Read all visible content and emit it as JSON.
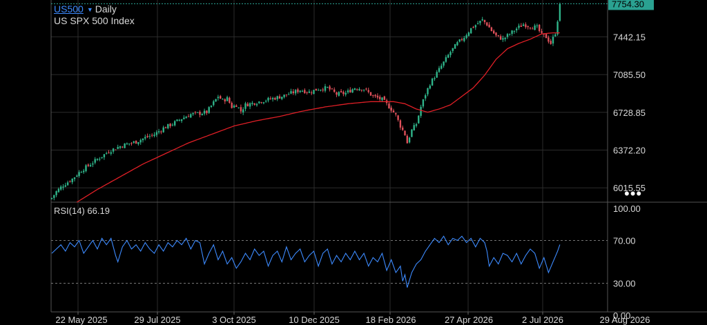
{
  "header": {
    "symbol": "US500",
    "interval": "Daily",
    "instrument_name": "US SPX 500 Index"
  },
  "more_menu_label": "•••",
  "colors": {
    "background": "#000000",
    "up_candle": "#2fb58a",
    "down_candle": "#e0505a",
    "moving_average": "#e01f26",
    "rsi_line": "#3d8bff",
    "price_label": "#2aa191",
    "grid": "#2c2c2c"
  },
  "chart_data": [
    {
      "type": "candlestick",
      "title": "US SPX 500 Index",
      "interval": "Daily",
      "last_price": 7754.3,
      "last_price_label": "7754.30",
      "ylim": [
        5880,
        7790
      ],
      "y_ticks": [
        6015.55,
        6372.2,
        6728.85,
        7085.5,
        7442.15
      ],
      "y_tick_labels": [
        "6015.55",
        "6372.20",
        "6728.85",
        "7085.50",
        "7442.15"
      ],
      "x_ticks": [
        "22 May 2025",
        "29 Jul 2025",
        "3 Oct 2025",
        "10 Dec 2025",
        "18 Feb 2026",
        "27 Apr 2026",
        "2 Jul 2026",
        "29 Aug 2026"
      ],
      "grid": true,
      "close_anchors": [
        [
          0,
          5920
        ],
        [
          2,
          5980
        ],
        [
          5,
          6040
        ],
        [
          9,
          6100
        ],
        [
          13,
          6180
        ],
        [
          17,
          6240
        ],
        [
          21,
          6300
        ],
        [
          25,
          6360
        ],
        [
          29,
          6400
        ],
        [
          33,
          6430
        ],
        [
          37,
          6450
        ],
        [
          41,
          6490
        ],
        [
          45,
          6520
        ],
        [
          49,
          6580
        ],
        [
          53,
          6620
        ],
        [
          57,
          6670
        ],
        [
          61,
          6710
        ],
        [
          65,
          6720
        ],
        [
          68,
          6730
        ],
        [
          71,
          6820
        ],
        [
          73,
          6880
        ],
        [
          75,
          6840
        ],
        [
          77,
          6860
        ],
        [
          79,
          6780
        ],
        [
          81,
          6800
        ],
        [
          83,
          6740
        ],
        [
          85,
          6800
        ],
        [
          89,
          6820
        ],
        [
          93,
          6840
        ],
        [
          97,
          6860
        ],
        [
          101,
          6880
        ],
        [
          105,
          6910
        ],
        [
          109,
          6940
        ],
        [
          113,
          6920
        ],
        [
          117,
          6950
        ],
        [
          121,
          6960
        ],
        [
          125,
          6900
        ],
        [
          129,
          6910
        ],
        [
          133,
          6960
        ],
        [
          137,
          6950
        ],
        [
          141,
          6880
        ],
        [
          145,
          6850
        ],
        [
          149,
          6760
        ],
        [
          151,
          6700
        ],
        [
          153,
          6600
        ],
        [
          155,
          6520
        ],
        [
          156,
          6440
        ],
        [
          158,
          6560
        ],
        [
          160,
          6620
        ],
        [
          162,
          6780
        ],
        [
          164,
          6900
        ],
        [
          166,
          7000
        ],
        [
          169,
          7100
        ],
        [
          172,
          7200
        ],
        [
          175,
          7300
        ],
        [
          178,
          7380
        ],
        [
          181,
          7440
        ],
        [
          184,
          7520
        ],
        [
          187,
          7570
        ],
        [
          189,
          7600
        ],
        [
          191,
          7560
        ],
        [
          193,
          7500
        ],
        [
          195,
          7450
        ],
        [
          198,
          7420
        ],
        [
          201,
          7470
        ],
        [
          204,
          7520
        ],
        [
          207,
          7560
        ],
        [
          210,
          7540
        ],
        [
          213,
          7530
        ],
        [
          215,
          7460
        ],
        [
          217,
          7440
        ],
        [
          219,
          7380
        ],
        [
          221,
          7480
        ],
        [
          222,
          7600
        ],
        [
          223,
          7754.3
        ]
      ],
      "ma_anchors": [
        [
          11,
          5880
        ],
        [
          20,
          6000
        ],
        [
          30,
          6120
        ],
        [
          40,
          6240
        ],
        [
          50,
          6340
        ],
        [
          60,
          6440
        ],
        [
          70,
          6520
        ],
        [
          80,
          6600
        ],
        [
          90,
          6650
        ],
        [
          100,
          6690
        ],
        [
          110,
          6740
        ],
        [
          120,
          6780
        ],
        [
          130,
          6810
        ],
        [
          140,
          6830
        ],
        [
          150,
          6830
        ],
        [
          155,
          6810
        ],
        [
          160,
          6760
        ],
        [
          165,
          6730
        ],
        [
          170,
          6760
        ],
        [
          175,
          6800
        ],
        [
          180,
          6880
        ],
        [
          185,
          6960
        ],
        [
          190,
          7080
        ],
        [
          195,
          7230
        ],
        [
          200,
          7330
        ],
        [
          205,
          7380
        ],
        [
          210,
          7420
        ],
        [
          215,
          7470
        ],
        [
          220,
          7480
        ],
        [
          223,
          7480
        ]
      ]
    },
    {
      "type": "line",
      "indicator": "RSI(14)",
      "last_value": 66.19,
      "ylim": [
        0,
        100
      ],
      "y_tick_labels": [
        "100.00",
        "70.00",
        "30.00",
        "0.00"
      ],
      "reference_lines": [
        70,
        30
      ],
      "rsi_anchors": [
        [
          0,
          58
        ],
        [
          2,
          62
        ],
        [
          4,
          66
        ],
        [
          6,
          60
        ],
        [
          8,
          68
        ],
        [
          10,
          64
        ],
        [
          12,
          70
        ],
        [
          14,
          58
        ],
        [
          16,
          64
        ],
        [
          18,
          70
        ],
        [
          20,
          62
        ],
        [
          22,
          72
        ],
        [
          24,
          66
        ],
        [
          26,
          72
        ],
        [
          28,
          56
        ],
        [
          29,
          50
        ],
        [
          31,
          64
        ],
        [
          33,
          70
        ],
        [
          35,
          62
        ],
        [
          37,
          66
        ],
        [
          39,
          60
        ],
        [
          41,
          68
        ],
        [
          43,
          62
        ],
        [
          45,
          58
        ],
        [
          47,
          66
        ],
        [
          49,
          60
        ],
        [
          51,
          68
        ],
        [
          53,
          64
        ],
        [
          55,
          70
        ],
        [
          57,
          66
        ],
        [
          59,
          72
        ],
        [
          61,
          62
        ],
        [
          63,
          70
        ],
        [
          65,
          68
        ],
        [
          67,
          48
        ],
        [
          69,
          58
        ],
        [
          71,
          66
        ],
        [
          73,
          52
        ],
        [
          75,
          60
        ],
        [
          77,
          48
        ],
        [
          79,
          54
        ],
        [
          81,
          44
        ],
        [
          83,
          50
        ],
        [
          85,
          58
        ],
        [
          87,
          52
        ],
        [
          89,
          62
        ],
        [
          91,
          56
        ],
        [
          93,
          60
        ],
        [
          95,
          46
        ],
        [
          97,
          56
        ],
        [
          99,
          60
        ],
        [
          101,
          50
        ],
        [
          103,
          64
        ],
        [
          105,
          52
        ],
        [
          107,
          58
        ],
        [
          109,
          62
        ],
        [
          111,
          50
        ],
        [
          113,
          56
        ],
        [
          115,
          60
        ],
        [
          117,
          46
        ],
        [
          119,
          58
        ],
        [
          121,
          62
        ],
        [
          123,
          48
        ],
        [
          125,
          56
        ],
        [
          127,
          50
        ],
        [
          129,
          58
        ],
        [
          131,
          52
        ],
        [
          133,
          60
        ],
        [
          135,
          52
        ],
        [
          137,
          58
        ],
        [
          139,
          46
        ],
        [
          141,
          54
        ],
        [
          143,
          50
        ],
        [
          145,
          58
        ],
        [
          147,
          42
        ],
        [
          149,
          52
        ],
        [
          151,
          40
        ],
        [
          153,
          46
        ],
        [
          154,
          32
        ],
        [
          155,
          38
        ],
        [
          156,
          26
        ],
        [
          158,
          40
        ],
        [
          160,
          48
        ],
        [
          162,
          52
        ],
        [
          164,
          60
        ],
        [
          166,
          66
        ],
        [
          168,
          72
        ],
        [
          170,
          68
        ],
        [
          172,
          74
        ],
        [
          174,
          66
        ],
        [
          176,
          72
        ],
        [
          178,
          70
        ],
        [
          180,
          74
        ],
        [
          182,
          68
        ],
        [
          184,
          72
        ],
        [
          186,
          64
        ],
        [
          188,
          72
        ],
        [
          190,
          68
        ],
        [
          191,
          60
        ],
        [
          192,
          46
        ],
        [
          194,
          54
        ],
        [
          196,
          48
        ],
        [
          198,
          58
        ],
        [
          200,
          56
        ],
        [
          202,
          50
        ],
        [
          204,
          58
        ],
        [
          206,
          48
        ],
        [
          208,
          56
        ],
        [
          210,
          62
        ],
        [
          212,
          58
        ],
        [
          214,
          44
        ],
        [
          216,
          54
        ],
        [
          218,
          40
        ],
        [
          220,
          50
        ],
        [
          222,
          60
        ],
        [
          223,
          66.19
        ]
      ]
    }
  ]
}
